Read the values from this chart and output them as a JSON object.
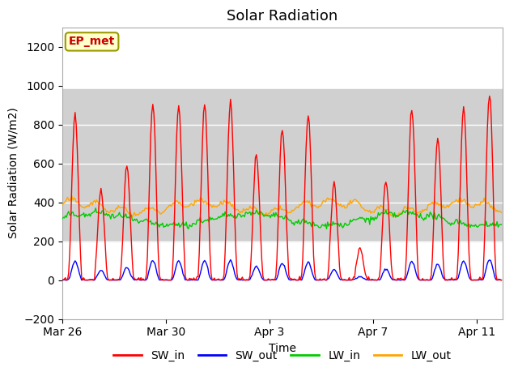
{
  "title": "Solar Radiation",
  "xlabel": "Time",
  "ylabel": "Solar Radiation (W/m2)",
  "ylim": [
    -200,
    1300
  ],
  "yticks": [
    -200,
    0,
    200,
    400,
    600,
    800,
    1000,
    1200
  ],
  "xlim_days": [
    0,
    17
  ],
  "x_tick_labels": [
    "Mar 26",
    "Mar 30",
    "Apr 3",
    "Apr 7",
    "Apr 11"
  ],
  "x_tick_positions": [
    0,
    4,
    8,
    12,
    16
  ],
  "colors": {
    "SW_in": "#ff0000",
    "SW_out": "#0000ff",
    "LW_in": "#00cc00",
    "LW_out": "#ffa500"
  },
  "legend_labels": [
    "SW_in",
    "SW_out",
    "LW_in",
    "LW_out"
  ],
  "annotation_text": "EP_met",
  "annotation_color": "#cc0000",
  "annotation_bg": "#ffffcc",
  "annotation_border": "#999900",
  "plot_bg": "#ffffff",
  "title_fontsize": 13,
  "axis_fontsize": 10,
  "tick_fontsize": 10,
  "legend_fontsize": 10,
  "n_days": 17,
  "dt_hours": 1,
  "peak_amps": [
    860,
    470,
    590,
    910,
    895,
    910,
    915,
    640,
    780,
    850,
    490,
    165,
    510,
    880,
    735,
    880,
    960
  ],
  "gray_band_low": 200,
  "gray_band_high": 980,
  "gray_band_color": "#d0d0d0"
}
